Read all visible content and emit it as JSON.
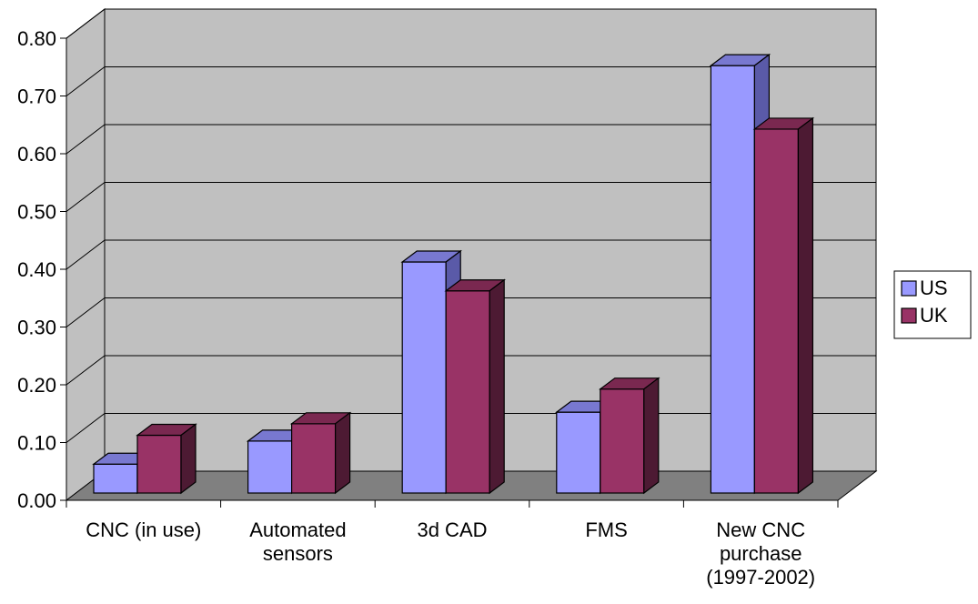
{
  "chart_data": {
    "type": "bar",
    "categories": [
      [
        "CNC (in use)"
      ],
      [
        "Automated",
        "sensors"
      ],
      [
        "3d CAD"
      ],
      [
        "FMS"
      ],
      [
        "New CNC",
        "purchase",
        "(1997-2002)"
      ]
    ],
    "series": [
      {
        "name": "US",
        "values": [
          0.05,
          0.09,
          0.4,
          0.14,
          0.74
        ],
        "color": "#9999ff",
        "side_color": "#5a5aa8",
        "top_color": "#7878d0"
      },
      {
        "name": "UK",
        "values": [
          0.1,
          0.12,
          0.35,
          0.18,
          0.63
        ],
        "color": "#993366",
        "side_color": "#4d1a33",
        "top_color": "#7a2850"
      }
    ],
    "yticks": [
      "0.00",
      "0.10",
      "0.20",
      "0.30",
      "0.40",
      "0.50",
      "0.60",
      "0.70",
      "0.80"
    ],
    "ylim": [
      0,
      0.8
    ],
    "grid": true,
    "legend_position": "right",
    "wall_color": "#c0c0c0",
    "floor_color": "#808080",
    "title": "",
    "xlabel": "",
    "ylabel": ""
  }
}
